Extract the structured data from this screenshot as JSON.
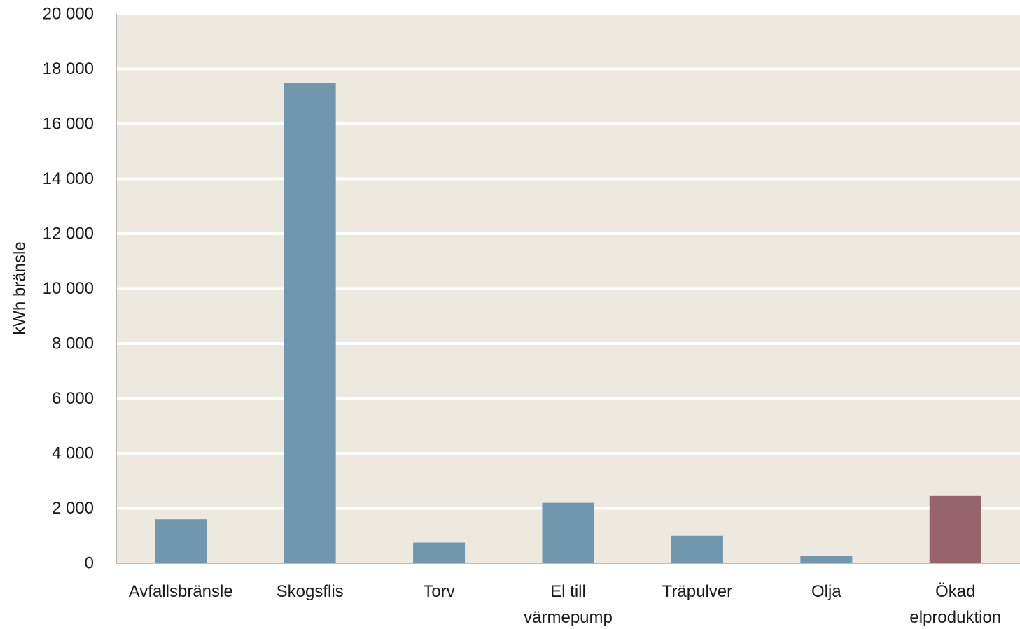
{
  "chart_data": {
    "type": "bar",
    "title": "",
    "xlabel": "",
    "ylabel": "kWh bränsle",
    "ylim": [
      0,
      20000
    ],
    "yticks": [
      0,
      2000,
      4000,
      6000,
      8000,
      10000,
      12000,
      14000,
      16000,
      18000,
      20000
    ],
    "ytick_labels": [
      "0",
      "2 000",
      "4 000",
      "6 000",
      "8 000",
      "10 000",
      "12 000",
      "14 000",
      "16 000",
      "18 000",
      "20 000"
    ],
    "grid": true,
    "legend": "none",
    "categories": [
      "Avfallsbränsle",
      "Skogsflis",
      "Torv",
      "El till värmepump",
      "Träpulver",
      "Olja",
      "Ökad elproduktion"
    ],
    "category_lines": [
      [
        "Avfallsbränsle"
      ],
      [
        "Skogsflis"
      ],
      [
        "Torv"
      ],
      [
        "El till",
        "värmepump"
      ],
      [
        "Träpulver"
      ],
      [
        "Olja"
      ],
      [
        "Ökad",
        "elproduktion"
      ]
    ],
    "values": [
      1600,
      17500,
      750,
      2200,
      1000,
      280,
      2450
    ],
    "bar_colors": [
      "#6f97ae",
      "#6f97ae",
      "#6f97ae",
      "#6f97ae",
      "#6f97ae",
      "#6f97ae",
      "#98646b"
    ],
    "plot_background": "#ede9df",
    "grid_color": "#ffffff",
    "axis_color": "#a6a6a6"
  }
}
